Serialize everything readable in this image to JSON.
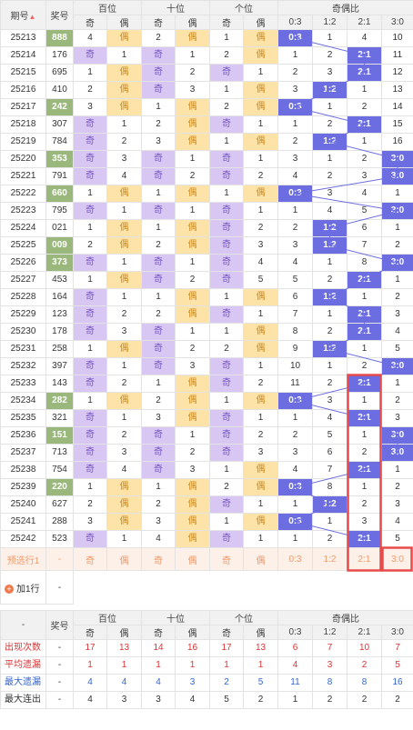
{
  "header": {
    "issue": "期号",
    "award": "奖号",
    "hundreds": "百位",
    "tens": "十位",
    "units": "个位",
    "ratio": "奇偶比",
    "odd": "奇",
    "even": "偶",
    "ratios": [
      "0:3",
      "1:2",
      "2:1",
      "3:0"
    ]
  },
  "rows": [
    {
      "issue": "25213",
      "award": "888",
      "hi": true,
      "h": [
        "4",
        "偶",
        1
      ],
      "t": [
        "2",
        "偶",
        1
      ],
      "u": [
        "1",
        "偶",
        1
      ],
      "r": [
        "0:3",
        "1",
        "4",
        "10"
      ],
      "hit": 0
    },
    {
      "issue": "25214",
      "award": "176",
      "hi": false,
      "h": [
        "奇",
        "1",
        0
      ],
      "t": [
        "奇",
        "1",
        0
      ],
      "u": [
        "2",
        "偶",
        1
      ],
      "r": [
        "1",
        "2",
        "2:1",
        "11"
      ],
      "hit": 2
    },
    {
      "issue": "25215",
      "award": "695",
      "hi": false,
      "h": [
        "1",
        "偶",
        1
      ],
      "t": [
        "奇",
        "2",
        0
      ],
      "u": [
        "奇",
        "1",
        0
      ],
      "r": [
        "2",
        "3",
        "2:1",
        "12"
      ],
      "hit": 2
    },
    {
      "issue": "25216",
      "award": "410",
      "hi": false,
      "h": [
        "2",
        "偶",
        1
      ],
      "t": [
        "奇",
        "3",
        0
      ],
      "u": [
        "1",
        "偶",
        1
      ],
      "r": [
        "3",
        "1:2",
        "1",
        "13"
      ],
      "hit": 1
    },
    {
      "issue": "25217",
      "award": "242",
      "hi": true,
      "h": [
        "3",
        "偶",
        1
      ],
      "t": [
        "1",
        "偶",
        1
      ],
      "u": [
        "2",
        "偶",
        1
      ],
      "r": [
        "0:3",
        "1",
        "2",
        "14"
      ],
      "hit": 0
    },
    {
      "issue": "25218",
      "award": "307",
      "hi": false,
      "h": [
        "奇",
        "1",
        0
      ],
      "t": [
        "2",
        "偶",
        1
      ],
      "u": [
        "奇",
        "1",
        0
      ],
      "r": [
        "1",
        "2",
        "2:1",
        "15"
      ],
      "hit": 2,
      "group": true
    },
    {
      "issue": "25219",
      "award": "784",
      "hi": false,
      "h": [
        "奇",
        "2",
        0
      ],
      "t": [
        "3",
        "偶",
        1
      ],
      "u": [
        "1",
        "偶",
        1
      ],
      "r": [
        "2",
        "1:2",
        "1",
        "16"
      ],
      "hit": 1
    },
    {
      "issue": "25220",
      "award": "353",
      "hi": true,
      "h": [
        "奇",
        "3",
        0
      ],
      "t": [
        "奇",
        "1",
        0
      ],
      "u": [
        "奇",
        "1",
        0
      ],
      "r": [
        "3",
        "1",
        "2",
        "3:0"
      ],
      "hit": 3
    },
    {
      "issue": "25221",
      "award": "791",
      "hi": false,
      "h": [
        "奇",
        "4",
        0
      ],
      "t": [
        "奇",
        "2",
        0
      ],
      "u": [
        "奇",
        "2",
        0
      ],
      "r": [
        "4",
        "2",
        "3",
        "3:0"
      ],
      "hit": 3
    },
    {
      "issue": "25222",
      "award": "660",
      "hi": true,
      "h": [
        "1",
        "偶",
        1
      ],
      "t": [
        "1",
        "偶",
        1
      ],
      "u": [
        "1",
        "偶",
        1
      ],
      "r": [
        "0:3",
        "3",
        "4",
        "1"
      ],
      "hit": 0
    },
    {
      "issue": "25223",
      "award": "795",
      "hi": false,
      "h": [
        "奇",
        "1",
        0
      ],
      "t": [
        "奇",
        "1",
        0
      ],
      "u": [
        "奇",
        "1",
        0
      ],
      "r": [
        "1",
        "4",
        "5",
        "3:0"
      ],
      "hit": 3,
      "group": true
    },
    {
      "issue": "25224",
      "award": "021",
      "hi": false,
      "h": [
        "1",
        "偶",
        1
      ],
      "t": [
        "1",
        "偶",
        1
      ],
      "u": [
        "奇",
        "2",
        0
      ],
      "r": [
        "2",
        "1:2",
        "6",
        "1"
      ],
      "hit": 1
    },
    {
      "issue": "25225",
      "award": "009",
      "hi": true,
      "h": [
        "2",
        "偶",
        1
      ],
      "t": [
        "2",
        "偶",
        1
      ],
      "u": [
        "奇",
        "3",
        0
      ],
      "r": [
        "3",
        "1:2",
        "7",
        "2"
      ],
      "hit": 1
    },
    {
      "issue": "25226",
      "award": "373",
      "hi": true,
      "h": [
        "奇",
        "1",
        0
      ],
      "t": [
        "奇",
        "1",
        0
      ],
      "u": [
        "奇",
        "4",
        0
      ],
      "r": [
        "4",
        "1",
        "8",
        "3:0"
      ],
      "hit": 3
    },
    {
      "issue": "25227",
      "award": "453",
      "hi": false,
      "h": [
        "1",
        "偶",
        1
      ],
      "t": [
        "奇",
        "2",
        0
      ],
      "u": [
        "奇",
        "5",
        0
      ],
      "r": [
        "5",
        "2",
        "2:1",
        "1"
      ],
      "hit": 2
    },
    {
      "issue": "25228",
      "award": "164",
      "hi": false,
      "h": [
        "奇",
        "1",
        0
      ],
      "t": [
        "1",
        "偶",
        1
      ],
      "u": [
        "1",
        "偶",
        1
      ],
      "r": [
        "6",
        "1:2",
        "1",
        "2"
      ],
      "hit": 1,
      "group": true
    },
    {
      "issue": "25229",
      "award": "123",
      "hi": false,
      "h": [
        "奇",
        "2",
        0
      ],
      "t": [
        "2",
        "偶",
        1
      ],
      "u": [
        "奇",
        "1",
        0
      ],
      "r": [
        "7",
        "1",
        "2:1",
        "3"
      ],
      "hit": 2
    },
    {
      "issue": "25230",
      "award": "178",
      "hi": false,
      "h": [
        "奇",
        "3",
        0
      ],
      "t": [
        "奇",
        "1",
        0
      ],
      "u": [
        "1",
        "偶",
        1
      ],
      "r": [
        "8",
        "2",
        "2:1",
        "4"
      ],
      "hit": 2
    },
    {
      "issue": "25231",
      "award": "258",
      "hi": false,
      "h": [
        "1",
        "偶",
        1
      ],
      "t": [
        "奇",
        "2",
        0
      ],
      "u": [
        "2",
        "偶",
        1
      ],
      "r": [
        "9",
        "1:2",
        "1",
        "5"
      ],
      "hit": 1
    },
    {
      "issue": "25232",
      "award": "397",
      "hi": false,
      "h": [
        "奇",
        "1",
        0
      ],
      "t": [
        "奇",
        "3",
        0
      ],
      "u": [
        "奇",
        "1",
        0
      ],
      "r": [
        "10",
        "1",
        "2",
        "3:0"
      ],
      "hit": 3
    },
    {
      "issue": "25233",
      "award": "143",
      "hi": false,
      "h": [
        "奇",
        "2",
        0
      ],
      "t": [
        "1",
        "偶",
        1
      ],
      "u": [
        "奇",
        "2",
        0
      ],
      "r": [
        "11",
        "2",
        "2:1",
        "1"
      ],
      "hit": 2,
      "group": true
    },
    {
      "issue": "25234",
      "award": "282",
      "hi": true,
      "h": [
        "1",
        "偶",
        1
      ],
      "t": [
        "2",
        "偶",
        1
      ],
      "u": [
        "1",
        "偶",
        1
      ],
      "r": [
        "0:3",
        "3",
        "1",
        "2"
      ],
      "hit": 0
    },
    {
      "issue": "25235",
      "award": "321",
      "hi": false,
      "h": [
        "奇",
        "1",
        0
      ],
      "t": [
        "3",
        "偶",
        1
      ],
      "u": [
        "奇",
        "1",
        0
      ],
      "r": [
        "1",
        "4",
        "2:1",
        "3"
      ],
      "hit": 2
    },
    {
      "issue": "25236",
      "award": "151",
      "hi": true,
      "h": [
        "奇",
        "2",
        0
      ],
      "t": [
        "奇",
        "1",
        0
      ],
      "u": [
        "奇",
        "2",
        0
      ],
      "r": [
        "2",
        "5",
        "1",
        "3:0"
      ],
      "hit": 3
    },
    {
      "issue": "25237",
      "award": "713",
      "hi": false,
      "h": [
        "奇",
        "3",
        0
      ],
      "t": [
        "奇",
        "2",
        0
      ],
      "u": [
        "奇",
        "3",
        0
      ],
      "r": [
        "3",
        "6",
        "2",
        "3:0"
      ],
      "hit": 3
    },
    {
      "issue": "25238",
      "award": "754",
      "hi": false,
      "h": [
        "奇",
        "4",
        0
      ],
      "t": [
        "奇",
        "3",
        0
      ],
      "u": [
        "1",
        "偶",
        1
      ],
      "r": [
        "4",
        "7",
        "2:1",
        "1"
      ],
      "hit": 2,
      "group": true
    },
    {
      "issue": "25239",
      "award": "220",
      "hi": true,
      "h": [
        "1",
        "偶",
        1
      ],
      "t": [
        "1",
        "偶",
        1
      ],
      "u": [
        "2",
        "偶",
        1
      ],
      "r": [
        "0:3",
        "8",
        "1",
        "2"
      ],
      "hit": 0
    },
    {
      "issue": "25240",
      "award": "627",
      "hi": false,
      "h": [
        "2",
        "偶",
        1
      ],
      "t": [
        "2",
        "偶",
        1
      ],
      "u": [
        "奇",
        "1",
        0
      ],
      "r": [
        "1",
        "1:2",
        "2",
        "3"
      ],
      "hit": 1
    },
    {
      "issue": "25241",
      "award": "288",
      "hi": false,
      "h": [
        "3",
        "偶",
        1
      ],
      "t": [
        "3",
        "偶",
        1
      ],
      "u": [
        "1",
        "偶",
        1
      ],
      "r": [
        "0:3",
        "1",
        "3",
        "4"
      ],
      "hit": 0
    },
    {
      "issue": "25242",
      "award": "523",
      "hi": false,
      "h": [
        "奇",
        "1",
        0
      ],
      "t": [
        "4",
        "偶",
        1
      ],
      "u": [
        "奇",
        "1",
        0
      ],
      "r": [
        "1",
        "2",
        "2:1",
        "5"
      ],
      "hit": 2
    }
  ],
  "predict": {
    "label": "预选行1",
    "award": "-",
    "cells": [
      "奇",
      "偶",
      "奇",
      "偶",
      "奇",
      "偶",
      "0:3",
      "1:2",
      "2:1",
      "3:0"
    ]
  },
  "add_row": {
    "label": "加1行",
    "value": "-"
  },
  "stats": {
    "dash": "-",
    "award": "奖号",
    "rows": [
      {
        "label": "出现次数",
        "award": "-",
        "values": [
          "17",
          "13",
          "14",
          "16",
          "17",
          "13",
          "6",
          "7",
          "10",
          "7"
        ],
        "cls": "red"
      },
      {
        "label": "平均遗漏",
        "award": "-",
        "values": [
          "1",
          "1",
          "1",
          "1",
          "1",
          "1",
          "4",
          "3",
          "2",
          "5"
        ],
        "cls": "red"
      },
      {
        "label": "最大遗漏",
        "award": "-",
        "values": [
          "4",
          "4",
          "4",
          "3",
          "2",
          "5",
          "11",
          "8",
          "8",
          "16"
        ],
        "cls": "blue"
      },
      {
        "label": "最大连出",
        "award": "-",
        "values": [
          "4",
          "3",
          "3",
          "4",
          "5",
          "2",
          "1",
          "2",
          "2",
          "2"
        ],
        "cls": ""
      }
    ]
  },
  "colors": {
    "odd": "#d8c6f3",
    "even": "#fde3a7",
    "award_hi": "#9ab87c",
    "ratio_hit": "#6b6de0",
    "highlight_box": "#e84b4b"
  }
}
